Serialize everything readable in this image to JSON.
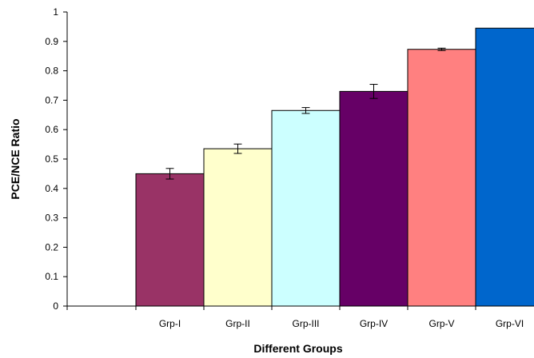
{
  "chart_data": {
    "type": "bar",
    "title": "",
    "xlabel": "Different Groups",
    "ylabel": "PCE/NCE Ratio",
    "ylim": [
      0,
      1
    ],
    "yticks": [
      "0",
      "0.1",
      "0.2",
      "0.3",
      "0.4",
      "0.5",
      "0.6",
      "0.7",
      "0.8",
      "0.9",
      "1"
    ],
    "categories": [
      "Grp-I",
      "Grp-II",
      "Grp-III",
      "Grp-IV",
      "Grp-V",
      "Grp-VI"
    ],
    "values": [
      0.45,
      0.535,
      0.665,
      0.73,
      0.873,
      0.945
    ],
    "errors": [
      0.018,
      0.016,
      0.01,
      0.024,
      0.004,
      0
    ],
    "colors": [
      "#993366",
      "#FFFFCC",
      "#CCFFFF",
      "#660066",
      "#FF8080",
      "#0066CC"
    ],
    "legend": "none",
    "grid": false
  }
}
